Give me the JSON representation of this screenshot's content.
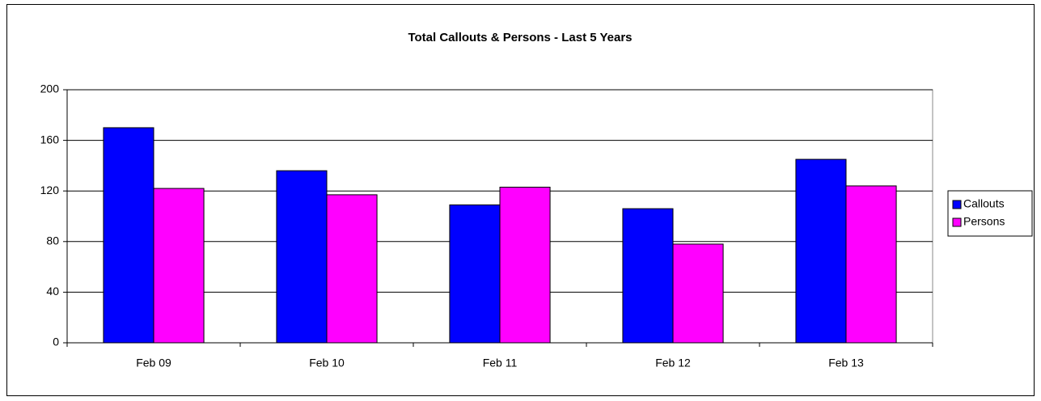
{
  "chart_data": {
    "type": "bar",
    "title": "Total Callouts & Persons - Last 5 Years",
    "categories": [
      "Feb 09",
      "Feb 10",
      "Feb 11",
      "Feb 12",
      "Feb 13"
    ],
    "series": [
      {
        "name": "Callouts",
        "color": "#0000ff",
        "values": [
          170,
          136,
          109,
          106,
          145
        ]
      },
      {
        "name": "Persons",
        "color": "#ff00ff",
        "values": [
          122,
          117,
          123,
          78,
          124
        ]
      }
    ],
    "ylim": [
      0,
      200
    ],
    "yticks": [
      0,
      40,
      80,
      120,
      160,
      200
    ],
    "grid": true,
    "legend": "right"
  }
}
